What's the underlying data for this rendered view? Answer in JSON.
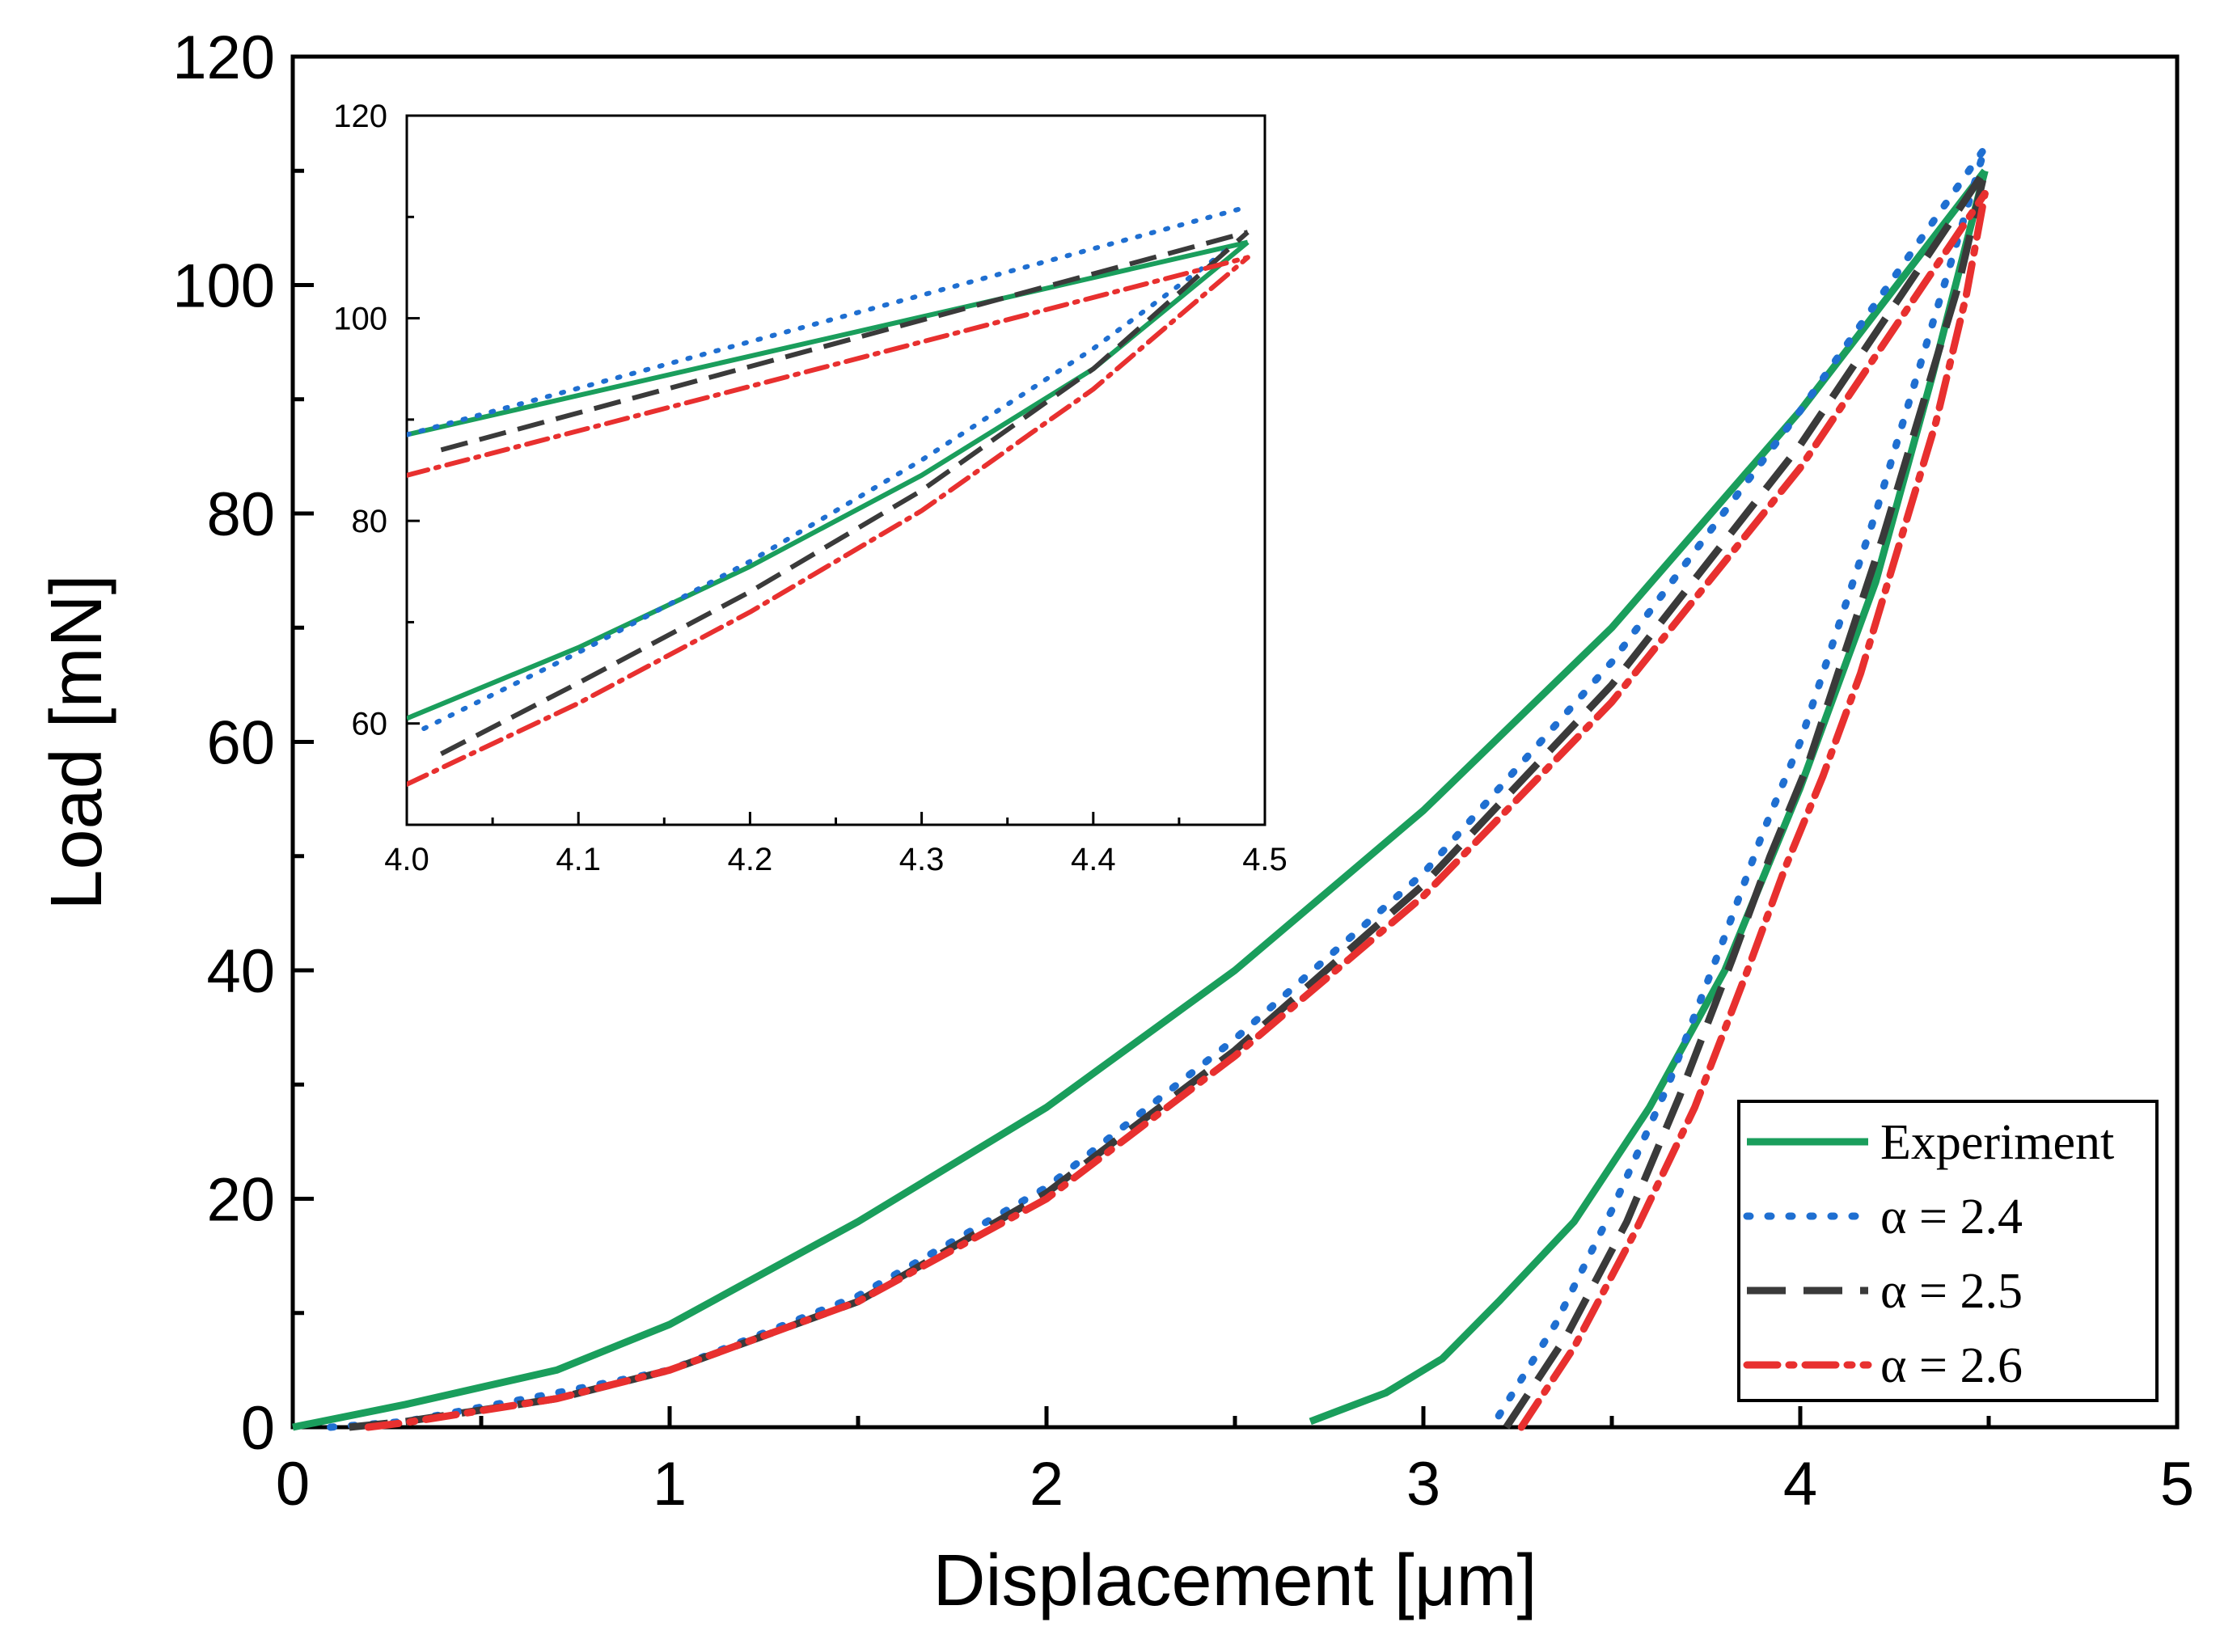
{
  "chart_data": [
    {
      "id": "main",
      "type": "line",
      "title": "",
      "xlabel": "Displacement [μm]",
      "ylabel": "Load [mN]",
      "xlim": [
        0,
        5
      ],
      "ylim": [
        0,
        120
      ],
      "xticks": [
        "0",
        "1",
        "2",
        "3",
        "4",
        "5"
      ],
      "yticks": [
        "0",
        "20",
        "40",
        "60",
        "80",
        "100",
        "120"
      ],
      "grid": false,
      "legend_position": "bottom-right",
      "series": [
        {
          "name": "Experiment",
          "color": "#1a9e5c",
          "style": "solid",
          "loading": {
            "x": [
              0,
              0.3,
              0.7,
              1.0,
              1.5,
              2.0,
              2.5,
              3.0,
              3.5,
              4.0,
              4.49
            ],
            "y": [
              0,
              2,
              5,
              9,
              18,
              28,
              40,
              54,
              70,
              89,
              110
            ]
          },
          "unloading": {
            "x": [
              2.7,
              2.9,
              3.05,
              3.2,
              3.4,
              3.6,
              3.8,
              4.0,
              4.2,
              4.35,
              4.49
            ],
            "y": [
              0.5,
              3,
              6,
              11,
              18,
              28,
              40,
              56,
              74,
              92,
              110
            ]
          }
        },
        {
          "name": "α = 2.4",
          "color": "#1f6fd1",
          "style": "dotted",
          "loading": {
            "x": [
              0.1,
              0.3,
              0.7,
              1.0,
              1.5,
              2.0,
              2.5,
              3.0,
              3.5,
              4.0,
              4.49
            ],
            "y": [
              0,
              0.5,
              3,
              5,
              11.5,
              21,
              34,
              48.5,
              67,
              89,
              112
            ]
          },
          "unloading": {
            "x": [
              3.2,
              3.35,
              3.5,
              3.65,
              3.8,
              3.9,
              4.0,
              4.1,
              4.2,
              4.3,
              4.4,
              4.49
            ],
            "y": [
              1,
              9,
              19,
              30,
              43,
              52,
              60,
              70,
              80,
              91,
              102,
              112
            ]
          }
        },
        {
          "name": "α = 2.5",
          "color": "#3a3a3a",
          "style": "dashed",
          "loading": {
            "x": [
              0.15,
              0.3,
              0.7,
              1.0,
              1.5,
              2.0,
              2.5,
              3.0,
              3.5,
              4.0,
              4.49
            ],
            "y": [
              0,
              0.5,
              2.5,
              5,
              11,
              20.5,
              33,
              47.5,
              65,
              86,
              110
            ]
          },
          "unloading": {
            "x": [
              3.22,
              3.38,
              3.54,
              3.68,
              3.82,
              3.92,
              4.02,
              4.12,
              4.22,
              4.32,
              4.42,
              4.49
            ],
            "y": [
              0,
              8,
              18,
              29,
              41,
              50,
              58,
              68,
              78,
              89,
              100,
              110
            ]
          }
        },
        {
          "name": "α = 2.6",
          "color": "#e8302f",
          "style": "dashdot",
          "loading": {
            "x": [
              0.2,
              0.3,
              0.7,
              1.0,
              1.5,
              2.0,
              2.5,
              3.0,
              3.5,
              4.0,
              4.49
            ],
            "y": [
              0,
              0.4,
              2.5,
              5,
              11,
              20,
              32.5,
              46.5,
              63.5,
              84,
              108
            ]
          },
          "unloading": {
            "x": [
              3.26,
              3.4,
              3.56,
              3.72,
              3.86,
              3.96,
              4.06,
              4.16,
              4.26,
              4.36,
              4.44,
              4.49
            ],
            "y": [
              0,
              7,
              17,
              28,
              40,
              49,
              57,
              66,
              77,
              88,
              99,
              108
            ]
          }
        }
      ]
    },
    {
      "id": "inset",
      "type": "line",
      "title": "",
      "xlim": [
        4.0,
        4.5
      ],
      "ylim": [
        50,
        120
      ],
      "xticks": [
        "4.0",
        "4.1",
        "4.2",
        "4.3",
        "4.4",
        "4.5"
      ],
      "yticks": [
        "60",
        "80",
        "100",
        "120"
      ],
      "grid": false,
      "series": [
        {
          "name": "Experiment",
          "color": "#1a9e5c",
          "style": "solid",
          "loading": {
            "x": [
              4.0,
              4.49
            ],
            "y": [
              88.5,
              107.5
            ]
          },
          "unloading": {
            "x": [
              4.0,
              4.1,
              4.2,
              4.3,
              4.4,
              4.49
            ],
            "y": [
              60.5,
              67.5,
              75.5,
              84.5,
              95,
              107.5
            ]
          }
        },
        {
          "name": "α = 2.4",
          "color": "#1f6fd1",
          "style": "dotted",
          "loading": {
            "x": [
              4.0,
              4.49
            ],
            "y": [
              88.5,
              111
            ]
          },
          "unloading": {
            "x": [
              4.01,
              4.1,
              4.2,
              4.3,
              4.4,
              4.48
            ],
            "y": [
              59.5,
              67,
              76,
              86,
              97,
              107
            ]
          }
        },
        {
          "name": "α = 2.5",
          "color": "#3a3a3a",
          "style": "dashed",
          "loading": {
            "x": [
              4.02,
              4.49
            ],
            "y": [
              87,
              108.5
            ]
          },
          "unloading": {
            "x": [
              4.02,
              4.1,
              4.2,
              4.3,
              4.4,
              4.49
            ],
            "y": [
              57,
              64,
              73,
              83,
              95,
              108.5
            ]
          }
        },
        {
          "name": "α = 2.6",
          "color": "#e8302f",
          "style": "dashdot",
          "loading": {
            "x": [
              4.0,
              4.49
            ],
            "y": [
              84.5,
              106
            ]
          },
          "unloading": {
            "x": [
              4.0,
              4.1,
              4.2,
              4.3,
              4.4,
              4.49
            ],
            "y": [
              54,
              62,
              71,
              81,
              93,
              106
            ]
          }
        }
      ]
    }
  ]
}
